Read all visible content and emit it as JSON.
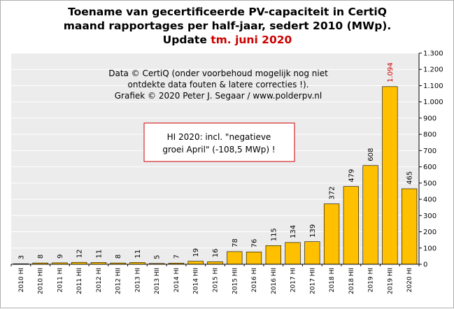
{
  "chart_data": {
    "type": "bar",
    "title_lines": [
      "Toename van gecertificeerde PV-capaciteit in CertiQ",
      "maand rapportages per half-jaar, sedert 2010 (MWp)."
    ],
    "update_prefix": "Update ",
    "update_highlight": "tm. juni 2020",
    "note_lines": [
      "Data © CertiQ (onder voorbehoud mogelijk  nog niet",
      "ontdekte data fouten & latere correcties !).",
      "Grafiek  © 2020 Peter J. Segaar / www.polderpv.nl"
    ],
    "box_lines": [
      "HI 2020:  incl. \"negatieve",
      "groei April\"  (-108,5 MWp)  !"
    ],
    "categories": [
      "2010 HI",
      "2010 HII",
      "2011 HI",
      "2011 HII",
      "2012 HI",
      "2012 HII",
      "2013 HI",
      "2013 HII",
      "2014 HI",
      "2014 HII",
      "2015 HI",
      "2015 HII",
      "2016 HI",
      "2016 HII",
      "2017 HI",
      "2017 HII",
      "2018 HI",
      "2018 HII",
      "2019 HI",
      "2019 HII",
      "2020 HI"
    ],
    "values": [
      3,
      8,
      9,
      12,
      11,
      8,
      11,
      5,
      7,
      19,
      16,
      78,
      76,
      115,
      134,
      139,
      372,
      479,
      608,
      1094,
      465
    ],
    "value_labels": [
      "3",
      "8",
      "9",
      "12",
      "11",
      "8",
      "11",
      "5",
      "7",
      "19",
      "16",
      "78",
      "76",
      "115",
      "134",
      "139",
      "372",
      "479",
      "608",
      "1.094",
      "465"
    ],
    "highlight_index": 19,
    "ylim": [
      0,
      1300
    ],
    "yticks": [
      0,
      100,
      200,
      300,
      400,
      500,
      600,
      700,
      800,
      900,
      1000,
      1100,
      1200,
      1300
    ],
    "ytick_labels": [
      "0",
      "100",
      "200",
      "300",
      "400",
      "500",
      "600",
      "700",
      "800",
      "900",
      "1.000",
      "1.100",
      "1.200",
      "1.300"
    ],
    "y_axis_side": "right",
    "grid": true,
    "colors": {
      "bar_fill": "#ffc000",
      "bar_stroke": "#000000",
      "highlight_label": "#cc0000",
      "plot_bg": "#ececec",
      "grid": "#ffffff",
      "box_border": "#cc0000"
    }
  }
}
